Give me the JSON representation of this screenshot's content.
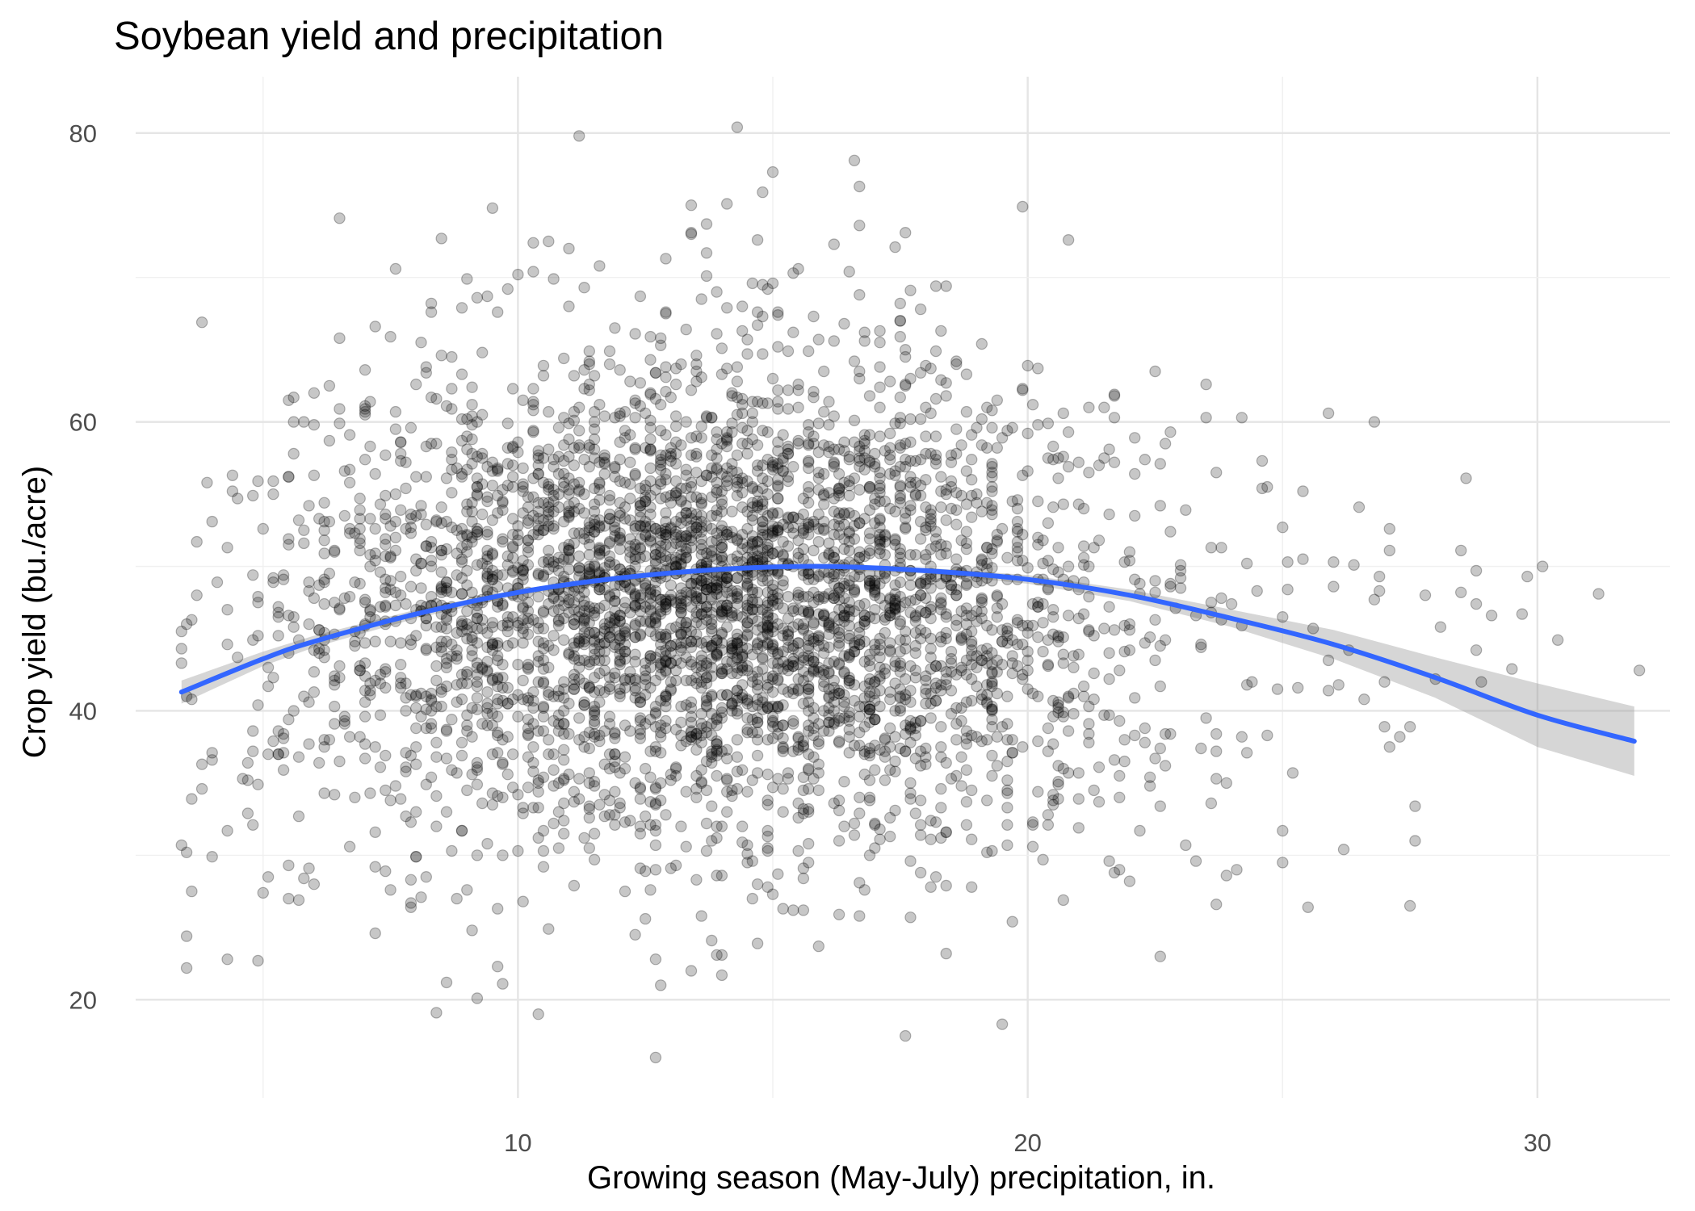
{
  "chart_data": {
    "type": "scatter",
    "title": "Soybean yield and precipitation",
    "xlabel": "Growing season (May-July) precipitation, in.",
    "ylabel": "Crop yield (bu./acre)",
    "xlim": [
      2.5,
      32.6
    ],
    "ylim": [
      13.2,
      83.9
    ],
    "x_ticks": [
      10,
      20,
      30
    ],
    "y_ticks": [
      20,
      40,
      60,
      80
    ],
    "x_tick_labels": [
      "10",
      "20",
      "30"
    ],
    "y_tick_labels": [
      "20",
      "40",
      "60",
      "80"
    ],
    "grid": true,
    "legend": "none",
    "n_points": 4000,
    "points_note": "approximately 4000 observations; most points are synthesized to match the visible spread (centered near 14 in. / 48 bu./acre, range 3–31 in. and 16–80 bu./acre)",
    "points": [
      [
        14.3,
        80.4
      ],
      [
        11.2,
        79.8
      ],
      [
        15.0,
        77.3
      ],
      [
        16.6,
        78.1
      ],
      [
        14.8,
        75.9
      ],
      [
        13.4,
        75.0
      ],
      [
        14.1,
        75.1
      ],
      [
        19.9,
        74.9
      ],
      [
        16.7,
        73.6
      ],
      [
        13.4,
        73.0
      ],
      [
        17.6,
        73.1
      ],
      [
        11.0,
        72.0
      ],
      [
        12.9,
        71.3
      ],
      [
        17.4,
        72.1
      ],
      [
        13.7,
        71.7
      ],
      [
        15.5,
        70.6
      ],
      [
        16.5,
        70.4
      ],
      [
        10.3,
        70.4
      ],
      [
        9.0,
        69.9
      ],
      [
        10.0,
        70.2
      ],
      [
        18.2,
        69.4
      ],
      [
        10.7,
        69.9
      ],
      [
        14.8,
        69.5
      ],
      [
        11.3,
        69.3
      ],
      [
        8.0,
        62.6
      ],
      [
        7.0,
        61.1
      ],
      [
        22.5,
        63.5
      ],
      [
        23.5,
        60.3
      ],
      [
        24.2,
        60.3
      ],
      [
        18.6,
        64.2
      ],
      [
        3.4,
        44.3
      ],
      [
        3.6,
        46.3
      ],
      [
        3.4,
        43.3
      ],
      [
        3.4,
        30.7
      ],
      [
        3.5,
        30.2
      ],
      [
        3.6,
        27.5
      ],
      [
        3.5,
        22.2
      ],
      [
        4.3,
        22.8
      ],
      [
        4.9,
        22.7
      ],
      [
        4.3,
        31.7
      ],
      [
        4.8,
        32.1
      ],
      [
        4.9,
        34.9
      ],
      [
        4.0,
        36.6
      ],
      [
        3.6,
        33.9
      ],
      [
        4.9,
        55.9
      ],
      [
        5.2,
        55.0
      ],
      [
        5.5,
        56.2
      ],
      [
        5.5,
        27.0
      ],
      [
        5.0,
        27.4
      ],
      [
        5.5,
        29.3
      ],
      [
        5.7,
        26.9
      ],
      [
        5.8,
        28.4
      ],
      [
        7.2,
        56.4
      ],
      [
        6.6,
        56.6
      ],
      [
        7.2,
        24.6
      ],
      [
        7.9,
        26.4
      ],
      [
        8.4,
        19.1
      ],
      [
        8.6,
        21.2
      ],
      [
        9.2,
        20.1
      ],
      [
        10.4,
        19.0
      ],
      [
        9.7,
        21.1
      ],
      [
        12.7,
        16.0
      ],
      [
        12.8,
        21.0
      ],
      [
        13.4,
        22.0
      ],
      [
        14.0,
        23.1
      ],
      [
        13.9,
        23.1
      ],
      [
        15.6,
        28.4
      ],
      [
        16.7,
        25.8
      ],
      [
        18.4,
        23.2
      ],
      [
        18.1,
        27.8
      ],
      [
        21.7,
        28.8
      ],
      [
        23.1,
        30.7
      ],
      [
        23.9,
        28.6
      ],
      [
        25.0,
        31.7
      ],
      [
        25.5,
        26.4
      ],
      [
        26.2,
        30.4
      ],
      [
        27.6,
        31.0
      ],
      [
        27.5,
        26.5
      ],
      [
        27.0,
        38.9
      ],
      [
        27.5,
        38.9
      ],
      [
        27.1,
        37.5
      ],
      [
        27.3,
        38.2
      ],
      [
        28.0,
        42.2
      ],
      [
        28.5,
        48.2
      ],
      [
        28.8,
        47.4
      ],
      [
        28.5,
        51.1
      ],
      [
        28.8,
        49.7
      ],
      [
        29.1,
        46.6
      ],
      [
        28.8,
        44.2
      ],
      [
        29.5,
        42.9
      ],
      [
        29.8,
        49.3
      ],
      [
        29.7,
        46.7
      ],
      [
        30.4,
        44.9
      ],
      [
        30.1,
        50.0
      ],
      [
        31.2,
        48.1
      ],
      [
        32.0,
        42.8
      ],
      [
        28.6,
        56.1
      ],
      [
        27.1,
        51.1
      ],
      [
        26.9,
        49.3
      ],
      [
        26.9,
        48.3
      ],
      [
        26.4,
        50.1
      ],
      [
        26.0,
        48.6
      ],
      [
        26.0,
        50.3
      ],
      [
        26.3,
        44.2
      ],
      [
        25.9,
        43.5
      ],
      [
        25.1,
        48.4
      ],
      [
        25.1,
        50.3
      ],
      [
        24.6,
        55.4
      ],
      [
        24.7,
        55.5
      ],
      [
        25.4,
        55.2
      ],
      [
        25.0,
        52.7
      ],
      [
        24.3,
        50.2
      ],
      [
        24.0,
        47.4
      ],
      [
        23.8,
        46.3
      ],
      [
        22.9,
        47.1
      ],
      [
        25.3,
        41.6
      ],
      [
        25.9,
        41.4
      ],
      [
        26.1,
        41.8
      ],
      [
        26.6,
        40.8
      ],
      [
        24.7,
        38.3
      ],
      [
        24.2,
        38.2
      ],
      [
        23.9,
        35.0
      ],
      [
        24.3,
        37.1
      ],
      [
        23.4,
        37.4
      ],
      [
        23.6,
        33.6
      ],
      [
        22.4,
        34.8
      ],
      [
        21.8,
        35.5
      ],
      [
        22.3,
        38.8
      ],
      [
        21.0,
        31.9
      ],
      [
        20.6,
        33.9
      ],
      [
        19.6,
        34.3
      ],
      [
        19.2,
        30.2
      ],
      [
        18.1,
        31.1
      ],
      [
        17.4,
        36.5
      ],
      [
        17.0,
        32.1
      ]
    ],
    "fit": {
      "name": "quadratic fit",
      "color": "#3366ff",
      "band_color": "#999999",
      "x": [
        3.4,
        5,
        6,
        8,
        10,
        12,
        14,
        16,
        18,
        20,
        22,
        24,
        26,
        28,
        30,
        31.9
      ],
      "y": [
        41.3,
        43.6,
        44.8,
        46.7,
        48.2,
        49.2,
        49.8,
        50.0,
        49.7,
        49.1,
        48.0,
        46.4,
        44.6,
        42.3,
        39.7,
        37.9
      ],
      "se_lower": [
        40.5,
        43.1,
        44.4,
        46.4,
        48.0,
        49.0,
        49.6,
        49.8,
        49.5,
        48.8,
        47.6,
        45.8,
        43.6,
        40.9,
        37.5,
        35.5
      ],
      "se_upper": [
        42.1,
        44.1,
        45.2,
        47.0,
        48.4,
        49.4,
        50.0,
        50.2,
        49.9,
        49.4,
        48.4,
        47.0,
        45.6,
        43.7,
        41.9,
        40.3
      ]
    },
    "colors": {
      "points": "#000000",
      "fit_line": "#3366ff",
      "band": "#999999",
      "grid": "#ebebeb"
    }
  }
}
